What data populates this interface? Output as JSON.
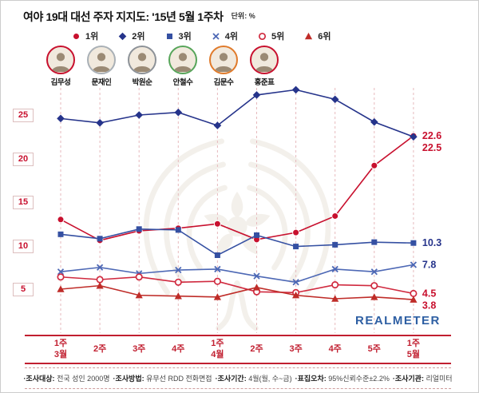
{
  "header": {
    "title": "여야 19대 대선 주자 지지도: '15년 5월 1주차",
    "unit": "단위: %"
  },
  "legend": [
    {
      "rank": "1위",
      "marker": "circle-filled",
      "color": "#c8102e"
    },
    {
      "rank": "2위",
      "marker": "diamond",
      "color": "#26348b"
    },
    {
      "rank": "3위",
      "marker": "square",
      "color": "#3550a2"
    },
    {
      "rank": "4위",
      "marker": "x",
      "color": "#4d68b5"
    },
    {
      "rank": "5위",
      "marker": "circle-open",
      "color": "#d02a3f"
    },
    {
      "rank": "6위",
      "marker": "triangle",
      "color": "#bf2c28"
    }
  ],
  "candidates": [
    {
      "name": "김무성",
      "ring": "#c8102e"
    },
    {
      "name": "문재인",
      "ring": "#a9b0b6"
    },
    {
      "name": "박원순",
      "ring": "#8d9298"
    },
    {
      "name": "안철수",
      "ring": "#57a55a"
    },
    {
      "name": "김문수",
      "ring": "#e07a2a"
    },
    {
      "name": "홍준표",
      "ring": "#c8102e"
    }
  ],
  "brand": "REALMETER",
  "footer": [
    {
      "label": "조사대상:",
      "value": "전국 성인 2000명"
    },
    {
      "label": "조사방법:",
      "value": "유무선 RDD 전화면접"
    },
    {
      "label": "조사기간:",
      "value": "4월(월, 수~금)"
    },
    {
      "label": "표집오차:",
      "value": "95%신뢰수준±2.2%"
    },
    {
      "label": "조사기관:",
      "value": "리얼미터"
    }
  ],
  "chart_data": {
    "type": "line",
    "title": "여야 19대 대선 주자 지지도: '15년 5월 1주차",
    "unit": "%",
    "grid": "vertical-dashed",
    "legend_position": "top",
    "categories": [
      "1주\n3월",
      "2주",
      "3주",
      "4주",
      "1주\n4월",
      "2주",
      "3주",
      "4주",
      "5주",
      "1주\n5월"
    ],
    "yticks": [
      5,
      10,
      15,
      20,
      25
    ],
    "ylim": [
      2.5,
      29.5
    ],
    "series": [
      {
        "name": "김무성",
        "rank": "1위",
        "marker": "circle-filled",
        "color": "#c8102e",
        "label_color": "#c8102e",
        "end_label": "22.6",
        "values": [
          13.0,
          10.6,
          11.7,
          12.0,
          12.5,
          10.7,
          11.5,
          13.4,
          19.2,
          22.6
        ]
      },
      {
        "name": "문재인",
        "rank": "2위",
        "marker": "diamond",
        "color": "#26348b",
        "label_color": "#c8102e",
        "end_label": "22.5",
        "values": [
          24.6,
          24.1,
          25.0,
          25.3,
          23.8,
          27.3,
          27.9,
          26.8,
          24.2,
          22.5
        ]
      },
      {
        "name": "박원순",
        "rank": "3위",
        "marker": "square",
        "color": "#3550a2",
        "label_color": "#26348b",
        "end_label": "10.3",
        "values": [
          11.3,
          10.8,
          11.9,
          11.8,
          8.9,
          11.2,
          9.9,
          10.1,
          10.4,
          10.3
        ]
      },
      {
        "name": "안철수",
        "rank": "4위",
        "marker": "x",
        "color": "#4d68b5",
        "label_color": "#26348b",
        "end_label": "7.8",
        "values": [
          7.0,
          7.5,
          6.8,
          7.2,
          7.3,
          6.5,
          5.8,
          7.3,
          7.0,
          7.8
        ]
      },
      {
        "name": "김문수",
        "rank": "5위",
        "marker": "circle-open",
        "color": "#d02a3f",
        "label_color": "#c8102e",
        "end_label": "4.5",
        "values": [
          6.4,
          6.1,
          6.4,
          5.8,
          5.9,
          4.7,
          4.6,
          5.5,
          5.4,
          4.5
        ]
      },
      {
        "name": "홍준표",
        "rank": "6위",
        "marker": "triangle",
        "color": "#bf2c28",
        "label_color": "#c8102e",
        "end_label": "3.8",
        "values": [
          5.0,
          5.4,
          4.3,
          4.2,
          4.1,
          5.2,
          4.3,
          3.9,
          4.1,
          3.8
        ]
      }
    ]
  }
}
